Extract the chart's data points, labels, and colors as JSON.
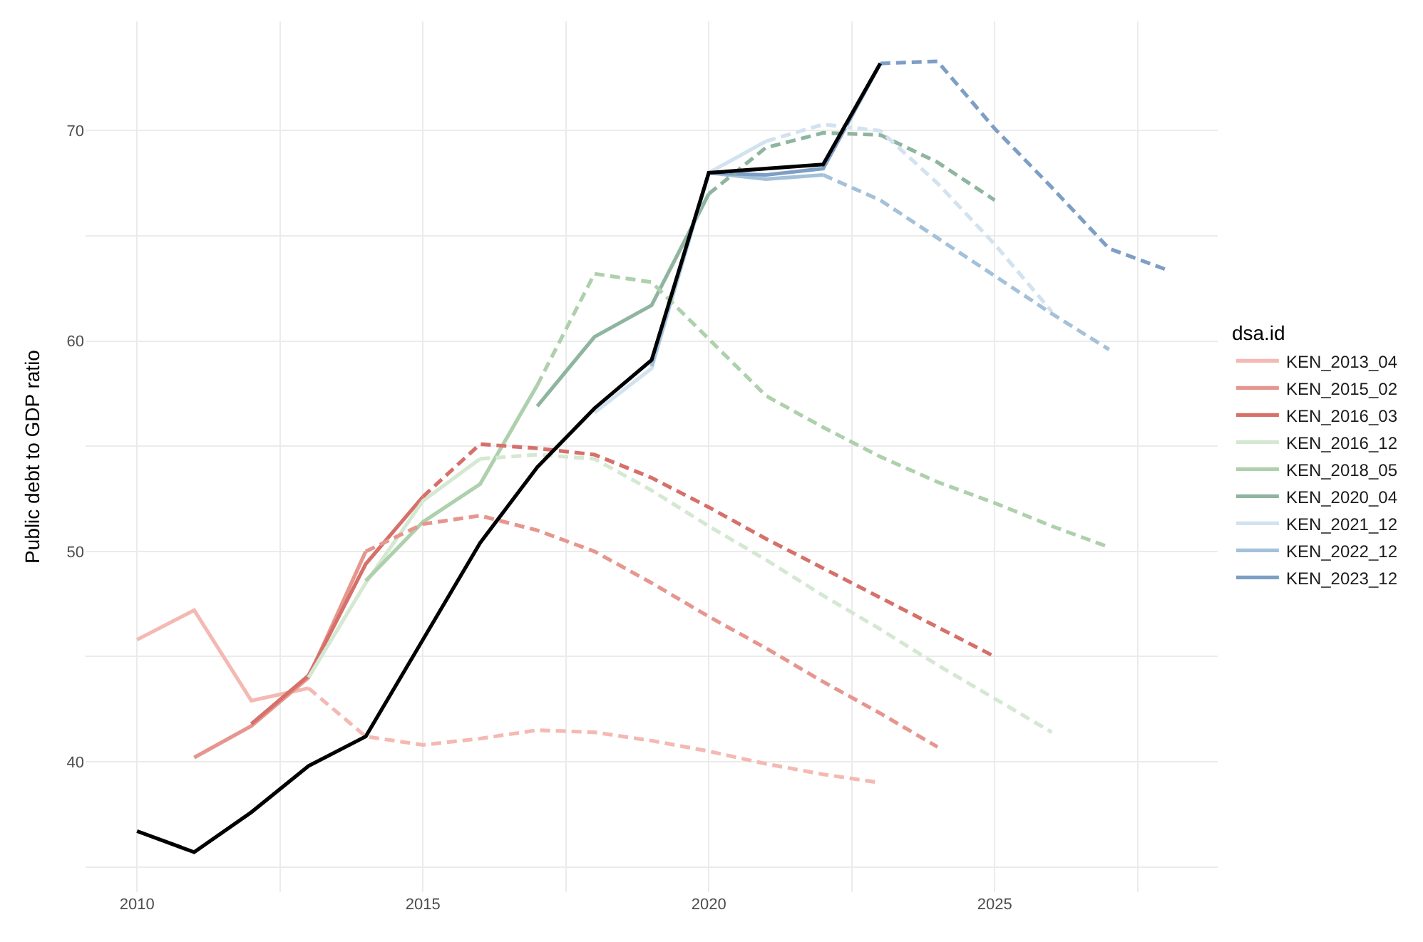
{
  "chart_data": {
    "type": "line",
    "ylabel": "Public debt to GDP ratio",
    "legend_title": "dsa.id",
    "legend": "right",
    "grid": true,
    "line_style": "solid",
    "marker": "none",
    "xlim": [
      2009.1,
      2028.9
    ],
    "xticks": [
      2010,
      {
        "value": 2012.5,
        "label": null
      },
      2015,
      {
        "value": 2017.5,
        "label": null
      },
      2020,
      {
        "value": 2022.5,
        "label": null
      },
      2025,
      {
        "value": 2027.5,
        "label": null
      }
    ],
    "ylim": [
      33.8,
      75.2
    ],
    "yticks": [
      {
        "value": 35,
        "label": null
      },
      40,
      {
        "value": 45,
        "label": null
      },
      50,
      {
        "value": 55,
        "label": null
      },
      60,
      {
        "value": 65,
        "label": null
      },
      70
    ],
    "series": [
      {
        "name": "KEN_2013_04",
        "color": "#f4b9b2",
        "x": [
          2010,
          2011,
          2012,
          2013
        ],
        "values": [
          45.8,
          47.2,
          42.9,
          43.5
        ]
      },
      {
        "name": "KEN_2015_02",
        "color": "#e6968e",
        "x": [
          2011,
          2012,
          2013,
          2014
        ],
        "values": [
          40.2,
          41.7,
          44.0,
          50.0
        ]
      },
      {
        "name": "KEN_2016_03",
        "color": "#d6706a",
        "x": [
          2012,
          2013,
          2014,
          2015
        ],
        "values": [
          41.8,
          44.1,
          49.4,
          52.6
        ]
      },
      {
        "name": "KEN_2016_12",
        "color": "#d4e8d2",
        "x": [
          2013,
          2014,
          2015,
          2016
        ],
        "values": [
          44.0,
          48.5,
          52.4,
          54.4
        ]
      },
      {
        "name": "KEN_2018_05",
        "color": "#aed0ac",
        "x": [
          2014,
          2015,
          2016,
          2017
        ],
        "values": [
          48.6,
          51.4,
          53.2,
          57.9
        ]
      },
      {
        "name": "KEN_2020_04",
        "color": "#8fb5a0",
        "x": [
          2017,
          2018,
          2019,
          2020
        ],
        "values": [
          56.9,
          60.2,
          61.7,
          67.0
        ]
      },
      {
        "name": "KEN_2021_12",
        "color": "#d2e2ef",
        "x": [
          2018,
          2019,
          2020,
          2021
        ],
        "values": [
          56.6,
          58.7,
          68.0,
          69.5
        ]
      },
      {
        "name": "KEN_2022_12",
        "color": "#a4c1da",
        "x": [
          2019,
          2020,
          2021,
          2022
        ],
        "values": [
          58.8,
          68.0,
          67.7,
          67.9
        ]
      },
      {
        "name": "KEN_2023_12",
        "color": "#7d9fc5",
        "x": [
          2020,
          2021,
          2022,
          2023
        ],
        "values": [
          68.0,
          67.9,
          68.2,
          73.2
        ]
      },
      {
        "color": "#f4b9b2",
        "line_style": "dashed",
        "x": [
          2013,
          2014,
          2015,
          2016,
          2017,
          2018,
          2019,
          2020,
          2021,
          2022,
          2023
        ],
        "values": [
          43.5,
          41.2,
          40.8,
          41.1,
          41.5,
          41.4,
          41.0,
          40.5,
          39.9,
          39.4,
          39.0
        ]
      },
      {
        "color": "#e6968e",
        "line_style": "dashed",
        "x": [
          2014,
          2015,
          2016,
          2017,
          2018,
          2019,
          2020,
          2021,
          2022,
          2023,
          2024
        ],
        "values": [
          50.0,
          51.3,
          51.7,
          51.0,
          50.0,
          48.5,
          46.9,
          45.4,
          43.8,
          42.3,
          40.7
        ]
      },
      {
        "color": "#d6706a",
        "line_style": "dashed",
        "x": [
          2015,
          2016,
          2017,
          2018,
          2019,
          2020,
          2021,
          2022,
          2023,
          2024,
          2025
        ],
        "values": [
          52.6,
          55.1,
          54.9,
          54.6,
          53.5,
          52.1,
          50.6,
          49.2,
          47.8,
          46.4,
          45.0
        ]
      },
      {
        "color": "#d4e8d2",
        "line_style": "dashed",
        "x": [
          2016,
          2017,
          2018,
          2019,
          2020,
          2021,
          2022,
          2023,
          2024,
          2025,
          2026
        ],
        "values": [
          54.4,
          54.6,
          54.4,
          52.9,
          51.2,
          49.6,
          47.9,
          46.3,
          44.6,
          43.0,
          41.4
        ]
      },
      {
        "color": "#aed0ac",
        "line_style": "dashed",
        "x": [
          2017,
          2018,
          2019,
          2020,
          2021,
          2022,
          2023,
          2024,
          2025,
          2026,
          2027
        ],
        "values": [
          57.9,
          63.2,
          62.8,
          60.1,
          57.4,
          55.9,
          54.5,
          53.3,
          52.3,
          51.2,
          50.2
        ]
      },
      {
        "color": "#8fb5a0",
        "line_style": "dashed",
        "x": [
          2020,
          2021,
          2022,
          2023,
          2024,
          2025
        ],
        "values": [
          67.0,
          69.2,
          69.9,
          69.8,
          68.5,
          66.7
        ]
      },
      {
        "color": "#d2e2ef",
        "line_style": "dashed",
        "x": [
          2021,
          2022,
          2023,
          2024,
          2025,
          2026
        ],
        "values": [
          69.5,
          70.3,
          70.0,
          67.5,
          64.6,
          61.4
        ]
      },
      {
        "color": "#a4c1da",
        "line_style": "dashed",
        "x": [
          2022,
          2023,
          2024,
          2025,
          2026,
          2027
        ],
        "values": [
          67.9,
          66.7,
          64.9,
          63.1,
          61.3,
          59.6
        ]
      },
      {
        "color": "#7d9fc5",
        "line_style": "dashed",
        "x": [
          2023,
          2024,
          2025,
          2026,
          2027,
          2028
        ],
        "values": [
          73.2,
          73.3,
          70.1,
          67.3,
          64.4,
          63.4
        ]
      },
      {
        "color": "#000000",
        "x": [
          2010,
          2011,
          2012,
          2013,
          2014,
          2015,
          2016,
          2017,
          2018,
          2019,
          2020,
          2021,
          2022,
          2023
        ],
        "values": [
          36.7,
          35.7,
          37.6,
          39.8,
          41.2,
          45.8,
          50.4,
          54.0,
          56.8,
          59.1,
          68.0,
          68.2,
          68.4,
          73.2
        ]
      }
    ]
  }
}
